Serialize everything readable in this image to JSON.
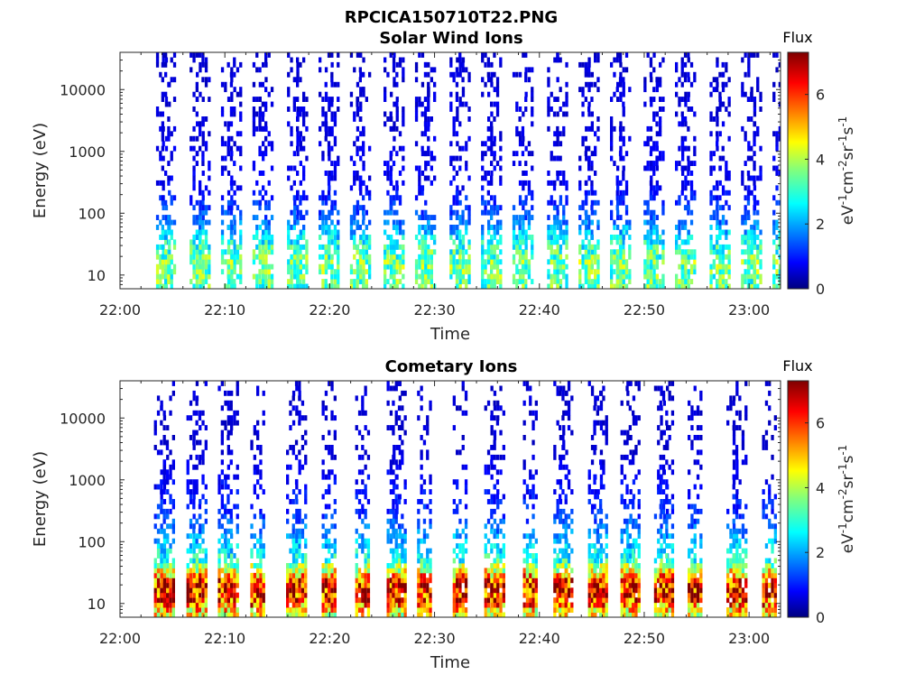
{
  "figure": {
    "title": "RPCICA150710T22.PNG"
  },
  "chart_data": [
    {
      "type": "heatmap",
      "title": "Solar Wind Ions",
      "xlabel": "Time",
      "ylabel": "Energy (eV)",
      "x_ticks": [
        "22:00",
        "22:10",
        "22:20",
        "22:30",
        "22:40",
        "22:50",
        "23:00"
      ],
      "xlim": [
        "22:00",
        "23:03"
      ],
      "y_scale": "log",
      "y_ticks": [
        "10",
        "100",
        "1000",
        "10000"
      ],
      "ylim": [
        6,
        40000
      ],
      "colorbar": {
        "label": "Flux",
        "unit": "eV-1cm-2sr-1s-1",
        "ticks": [
          "0",
          "2",
          "4",
          "6"
        ],
        "range": [
          0,
          7.3
        ],
        "colormap": "jet"
      },
      "sweep_minutes": [
        4.0,
        4.5,
        7.2,
        7.8,
        10.2,
        10.8,
        13.2,
        13.8,
        16.5,
        17.1,
        19.5,
        20.1,
        22.5,
        23.1,
        25.7,
        26.3,
        28.7,
        29.3,
        32.0,
        32.6,
        35.0,
        35.6,
        38.0,
        38.6,
        41.3,
        41.9,
        44.3,
        44.9,
        47.3,
        47.9,
        50.5,
        51.1,
        53.5,
        54.1,
        56.8,
        57.4,
        59.8,
        60.4,
        62.8
      ],
      "flux_profile": [
        {
          "energy_eV": 8,
          "flux": 3.4
        },
        {
          "energy_eV": 15,
          "flux": 3.6
        },
        {
          "energy_eV": 25,
          "flux": 3.2
        },
        {
          "energy_eV": 40,
          "flux": 2.6
        },
        {
          "energy_eV": 80,
          "flux": 1.6
        },
        {
          "energy_eV": 300,
          "flux": 0.8
        },
        {
          "energy_eV": 2000,
          "flux": 0.7
        },
        {
          "energy_eV": 15000,
          "flux": 0.6
        }
      ]
    },
    {
      "type": "heatmap",
      "title": "Cometary Ions",
      "xlabel": "Time",
      "ylabel": "Energy (eV)",
      "x_ticks": [
        "22:00",
        "22:10",
        "22:20",
        "22:30",
        "22:40",
        "22:50",
        "23:00"
      ],
      "xlim": [
        "22:00",
        "23:03"
      ],
      "y_scale": "log",
      "y_ticks": [
        "10",
        "100",
        "1000",
        "10000"
      ],
      "ylim": [
        6,
        40000
      ],
      "colorbar": {
        "label": "Flux",
        "unit": "eV-1cm-2sr-1s-1",
        "ticks": [
          "0",
          "2",
          "4",
          "6"
        ],
        "range": [
          0,
          7.3
        ],
        "colormap": "jet"
      },
      "sweep_minutes": [
        3.8,
        4.4,
        6.9,
        7.5,
        9.9,
        10.5,
        13.0,
        16.4,
        17.0,
        19.8,
        23.0,
        26.0,
        26.5,
        28.9,
        32.3,
        35.3,
        35.9,
        39.0,
        41.9,
        42.4,
        45.2,
        45.7,
        48.3,
        48.8,
        51.5,
        52.0,
        54.7,
        58.4,
        59.0,
        61.8
      ],
      "flux_profile": [
        {
          "energy_eV": 7,
          "flux": 4.5
        },
        {
          "energy_eV": 12,
          "flux": 6.3
        },
        {
          "energy_eV": 20,
          "flux": 6.6
        },
        {
          "energy_eV": 30,
          "flux": 5.0
        },
        {
          "energy_eV": 50,
          "flux": 3.0
        },
        {
          "energy_eV": 100,
          "flux": 2.2
        },
        {
          "energy_eV": 300,
          "flux": 1.2
        },
        {
          "energy_eV": 3000,
          "flux": 0.6
        }
      ]
    }
  ]
}
